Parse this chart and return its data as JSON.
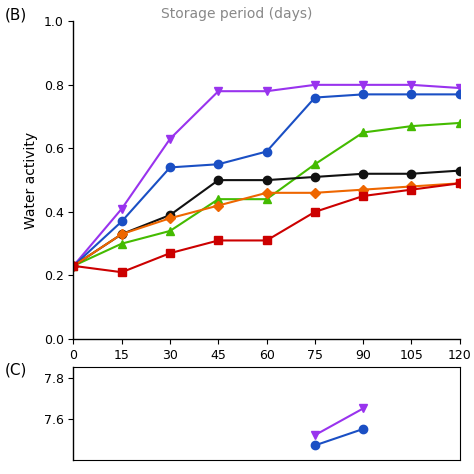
{
  "panel_B_label": "(B)",
  "panel_C_label": "(C)",
  "top_partial_text": "Storage period (days)",
  "xlabel_B": "Storage period (days)",
  "ylabel_B": "Water activity",
  "x": [
    0,
    15,
    30,
    45,
    60,
    75,
    90,
    105,
    120
  ],
  "ylim_B": [
    0.0,
    1.0
  ],
  "xlim": [
    0,
    120
  ],
  "yticks_B": [
    0.0,
    0.2,
    0.4,
    0.6,
    0.8,
    1.0
  ],
  "xticks": [
    0,
    15,
    30,
    45,
    60,
    75,
    90,
    105,
    120
  ],
  "series_B": [
    {
      "label": "Purple",
      "color": "#9933EE",
      "marker": "v",
      "markersize": 6,
      "linewidth": 1.5,
      "y": [
        0.23,
        0.41,
        0.63,
        0.78,
        0.78,
        0.8,
        0.8,
        0.8,
        0.79
      ]
    },
    {
      "label": "Blue",
      "color": "#1a4fc4",
      "marker": "o",
      "markersize": 6,
      "linewidth": 1.5,
      "y": [
        0.23,
        0.37,
        0.54,
        0.55,
        0.59,
        0.76,
        0.77,
        0.77,
        0.77
      ]
    },
    {
      "label": "Green",
      "color": "#44BB00",
      "marker": "^",
      "markersize": 6,
      "linewidth": 1.5,
      "y": [
        0.23,
        0.3,
        0.34,
        0.44,
        0.44,
        0.55,
        0.65,
        0.67,
        0.68
      ]
    },
    {
      "label": "Black",
      "color": "#111111",
      "marker": "o",
      "markersize": 6,
      "linewidth": 1.5,
      "y": [
        0.23,
        0.33,
        0.39,
        0.5,
        0.5,
        0.51,
        0.52,
        0.52,
        0.53
      ]
    },
    {
      "label": "Orange",
      "color": "#EE6600",
      "marker": "D",
      "markersize": 5,
      "linewidth": 1.5,
      "y": [
        0.23,
        0.33,
        0.38,
        0.42,
        0.46,
        0.46,
        0.47,
        0.48,
        0.49
      ]
    },
    {
      "label": "Red",
      "color": "#CC0000",
      "marker": "s",
      "markersize": 6,
      "linewidth": 1.5,
      "y": [
        0.23,
        0.21,
        0.27,
        0.31,
        0.31,
        0.4,
        0.45,
        0.47,
        0.49
      ]
    }
  ],
  "ylim_C": [
    7.4,
    7.85
  ],
  "yticks_C": [
    7.6,
    7.8
  ],
  "series_C": [
    {
      "color": "#9933EE",
      "marker": "v",
      "markersize": 6,
      "linewidth": 1.5,
      "x": [
        75,
        90
      ],
      "y": [
        7.52,
        7.65
      ]
    },
    {
      "color": "#1a4fc4",
      "marker": "o",
      "markersize": 6,
      "linewidth": 1.5,
      "x": [
        75,
        90
      ],
      "y": [
        7.47,
        7.55
      ]
    }
  ],
  "figsize": [
    4.74,
    4.74
  ],
  "dpi": 100,
  "background_color": "#ffffff",
  "spine_color": "#000000",
  "tick_labelsize": 9,
  "axis_labelsize": 10
}
